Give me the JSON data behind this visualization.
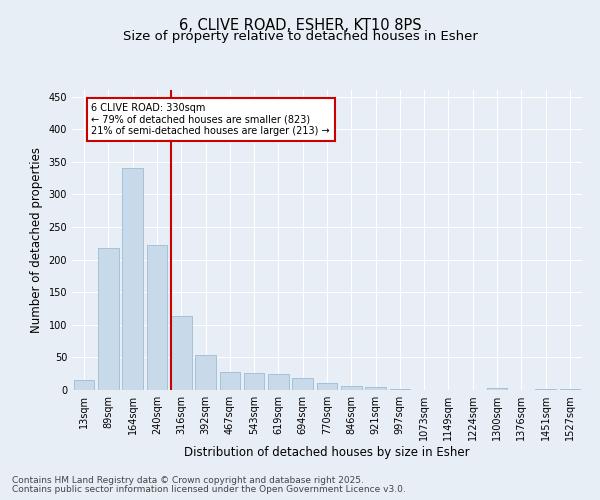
{
  "title1": "6, CLIVE ROAD, ESHER, KT10 8PS",
  "title2": "Size of property relative to detached houses in Esher",
  "xlabel": "Distribution of detached houses by size in Esher",
  "ylabel": "Number of detached properties",
  "categories": [
    "13sqm",
    "89sqm",
    "164sqm",
    "240sqm",
    "316sqm",
    "392sqm",
    "467sqm",
    "543sqm",
    "619sqm",
    "694sqm",
    "770sqm",
    "846sqm",
    "921sqm",
    "997sqm",
    "1073sqm",
    "1149sqm",
    "1224sqm",
    "1300sqm",
    "1376sqm",
    "1451sqm",
    "1527sqm"
  ],
  "values": [
    15,
    217,
    340,
    222,
    113,
    54,
    27,
    26,
    25,
    19,
    10,
    6,
    5,
    1,
    0,
    0,
    0,
    3,
    0,
    1,
    2
  ],
  "bar_color": "#c8d9ea",
  "bar_edge_color": "#9bbcd4",
  "vline_color": "#cc0000",
  "annotation_line1": "6 CLIVE ROAD: 330sqm",
  "annotation_line2": "← 79% of detached houses are smaller (823)",
  "annotation_line3": "21% of semi-detached houses are larger (213) →",
  "annotation_box_color": "#ffffff",
  "annotation_box_edge": "#cc0000",
  "ylim": [
    0,
    460
  ],
  "yticks": [
    0,
    50,
    100,
    150,
    200,
    250,
    300,
    350,
    400,
    450
  ],
  "bg_color": "#e8eef5",
  "plot_bg": "#e8eef5",
  "grid_color": "#ffffff",
  "footer1": "Contains HM Land Registry data © Crown copyright and database right 2025.",
  "footer2": "Contains public sector information licensed under the Open Government Licence v3.0.",
  "title_fontsize": 10.5,
  "subtitle_fontsize": 9.5,
  "tick_fontsize": 7,
  "label_fontsize": 8.5,
  "footer_fontsize": 6.5
}
